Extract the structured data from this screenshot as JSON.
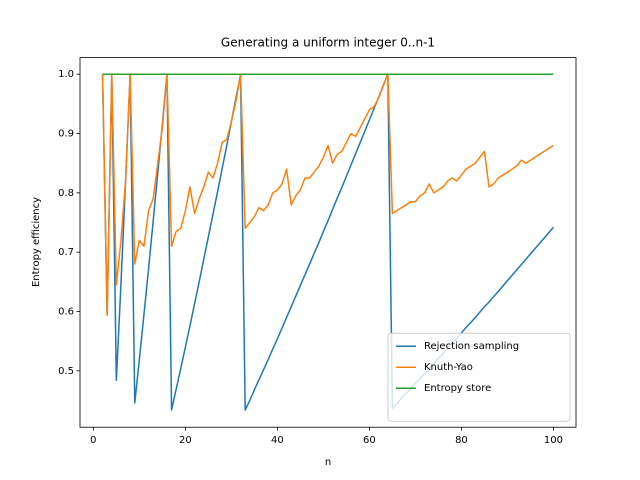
{
  "chart_data": {
    "type": "line",
    "title": "Generating a uniform integer 0..n-1",
    "x_label": "n",
    "y_label": "Entropy efficiency",
    "x": [
      2,
      3,
      4,
      5,
      6,
      7,
      8,
      9,
      10,
      11,
      12,
      13,
      14,
      15,
      16,
      17,
      18,
      19,
      20,
      21,
      22,
      23,
      24,
      25,
      26,
      27,
      28,
      29,
      30,
      31,
      32,
      33,
      34,
      35,
      36,
      37,
      38,
      39,
      40,
      41,
      42,
      43,
      44,
      45,
      46,
      47,
      48,
      49,
      50,
      51,
      52,
      53,
      54,
      55,
      56,
      57,
      58,
      59,
      60,
      61,
      62,
      63,
      64,
      65,
      66,
      67,
      68,
      69,
      70,
      71,
      72,
      73,
      74,
      75,
      76,
      77,
      78,
      79,
      80,
      81,
      82,
      83,
      84,
      85,
      86,
      87,
      88,
      89,
      90,
      91,
      92,
      93,
      94,
      95,
      96,
      97,
      98,
      99,
      100
    ],
    "series": [
      {
        "name": "Rejection sampling",
        "color": "#1f77b4",
        "values": [
          1,
          0.594,
          1,
          0.484,
          0.646,
          0.819,
          1,
          0.446,
          0.519,
          0.595,
          0.672,
          0.752,
          0.833,
          0.916,
          1,
          0.434,
          0.469,
          0.504,
          0.54,
          0.576,
          0.613,
          0.65,
          0.688,
          0.726,
          0.764,
          0.802,
          0.841,
          0.88,
          0.92,
          0.96,
          1,
          0.434,
          0.45,
          0.468,
          0.485,
          0.502,
          0.519,
          0.537,
          0.554,
          0.572,
          0.59,
          0.608,
          0.626,
          0.644,
          0.662,
          0.68,
          0.698,
          0.716,
          0.735,
          0.753,
          0.772,
          0.791,
          0.809,
          0.828,
          0.847,
          0.866,
          0.885,
          0.904,
          0.923,
          0.942,
          0.961,
          0.981,
          1,
          0.437,
          0.445,
          0.454,
          0.462,
          0.47,
          0.479,
          0.487,
          0.495,
          0.504,
          0.512,
          0.521,
          0.529,
          0.538,
          0.547,
          0.555,
          0.564,
          0.573,
          0.581,
          0.59,
          0.599,
          0.608,
          0.616,
          0.625,
          0.634,
          0.643,
          0.652,
          0.661,
          0.67,
          0.679,
          0.688,
          0.697,
          0.706,
          0.715,
          0.724,
          0.733,
          0.742
        ]
      },
      {
        "name": "Knuth-Yao",
        "color": "#ff7f0e",
        "values": [
          1,
          0.594,
          1,
          0.645,
          0.72,
          0.82,
          1,
          0.68,
          0.72,
          0.71,
          0.77,
          0.79,
          0.85,
          0.91,
          1,
          0.71,
          0.735,
          0.74,
          0.77,
          0.81,
          0.765,
          0.79,
          0.81,
          0.835,
          0.825,
          0.85,
          0.885,
          0.89,
          0.92,
          0.955,
          1,
          0.74,
          0.75,
          0.76,
          0.775,
          0.77,
          0.78,
          0.8,
          0.805,
          0.815,
          0.84,
          0.78,
          0.795,
          0.805,
          0.825,
          0.825,
          0.835,
          0.845,
          0.86,
          0.88,
          0.85,
          0.865,
          0.87,
          0.885,
          0.9,
          0.895,
          0.91,
          0.925,
          0.94,
          0.945,
          0.96,
          0.98,
          1,
          0.765,
          0.77,
          0.775,
          0.78,
          0.785,
          0.785,
          0.795,
          0.8,
          0.815,
          0.8,
          0.805,
          0.81,
          0.82,
          0.825,
          0.82,
          0.83,
          0.84,
          0.845,
          0.85,
          0.86,
          0.87,
          0.81,
          0.815,
          0.825,
          0.83,
          0.835,
          0.84,
          0.845,
          0.855,
          0.85,
          0.855,
          0.86,
          0.865,
          0.87,
          0.875,
          0.88
        ]
      },
      {
        "name": "Entropy store",
        "color": "#2ca02c",
        "values": [
          1,
          1,
          1,
          1,
          1,
          1,
          1,
          1,
          1,
          1,
          1,
          1,
          1,
          1,
          1,
          1,
          1,
          1,
          1,
          1,
          1,
          1,
          1,
          1,
          1,
          1,
          1,
          1,
          1,
          1,
          1,
          1,
          1,
          1,
          1,
          1,
          1,
          1,
          1,
          1,
          1,
          1,
          1,
          1,
          1,
          1,
          1,
          1,
          1,
          1,
          1,
          1,
          1,
          1,
          1,
          1,
          1,
          1,
          1,
          1,
          1,
          1,
          1,
          1,
          1,
          1,
          1,
          1,
          1,
          1,
          1,
          1,
          1,
          1,
          1,
          1,
          1,
          1,
          1,
          1,
          1,
          1,
          1,
          1,
          1,
          1,
          1,
          1,
          1,
          1,
          1,
          1,
          1,
          1,
          1,
          1,
          1,
          1,
          1
        ]
      }
    ],
    "xlim": [
      -2.9,
      104.9
    ],
    "xticks": [
      0,
      20,
      40,
      60,
      80,
      100
    ],
    "ylim": [
      0.405,
      1.028
    ],
    "yticks": [
      0.5,
      0.6,
      0.7,
      0.8,
      0.9,
      {
        "value": 1,
        "label": "1.0"
      }
    ],
    "legend": "lower right"
  }
}
